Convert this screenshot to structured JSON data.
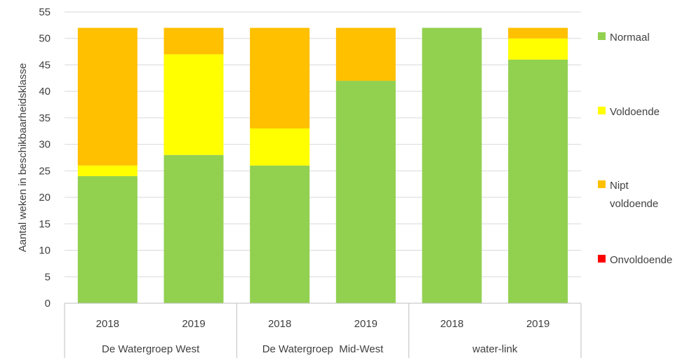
{
  "chart_data": {
    "type": "bar",
    "stacked": true,
    "ylabel": "Aantal weken in beschikbaarheidsklasse",
    "ylim": [
      0,
      55
    ],
    "yticks": [
      0,
      5,
      10,
      15,
      20,
      25,
      30,
      35,
      40,
      45,
      50,
      55
    ],
    "grid": true,
    "legend_position": "right",
    "groups": [
      {
        "label": "De Watergroep West",
        "categories": [
          "2018",
          "2019"
        ]
      },
      {
        "label": "De Watergroep  Mid-West",
        "categories": [
          "2018",
          "2019"
        ]
      },
      {
        "label": "water-link",
        "categories": [
          "2018",
          "2019"
        ]
      }
    ],
    "categories": [
      "2018",
      "2019",
      "2018",
      "2019",
      "2018",
      "2019"
    ],
    "series": [
      {
        "name": "Normaal",
        "color": "#92d050",
        "values": [
          24,
          28,
          26,
          42,
          52,
          46
        ]
      },
      {
        "name": "Voldoende",
        "color": "#ffff00",
        "values": [
          2,
          19,
          7,
          0,
          0,
          4
        ]
      },
      {
        "name": "Nipt voldoende",
        "color": "#ffc000",
        "values": [
          26,
          5,
          19,
          10,
          0,
          2
        ]
      },
      {
        "name": "Onvoldoende",
        "color": "#ff0000",
        "values": [
          0,
          0,
          0,
          0,
          0,
          0
        ]
      }
    ],
    "legend": [
      {
        "lines": [
          "Normaal"
        ],
        "color": "#92d050"
      },
      {
        "lines": [
          "Voldoende"
        ],
        "color": "#ffff00"
      },
      {
        "lines": [
          "Nipt",
          "voldoende"
        ],
        "color": "#ffc000"
      },
      {
        "lines": [
          "Onvoldoende"
        ],
        "color": "#ff0000"
      }
    ]
  }
}
